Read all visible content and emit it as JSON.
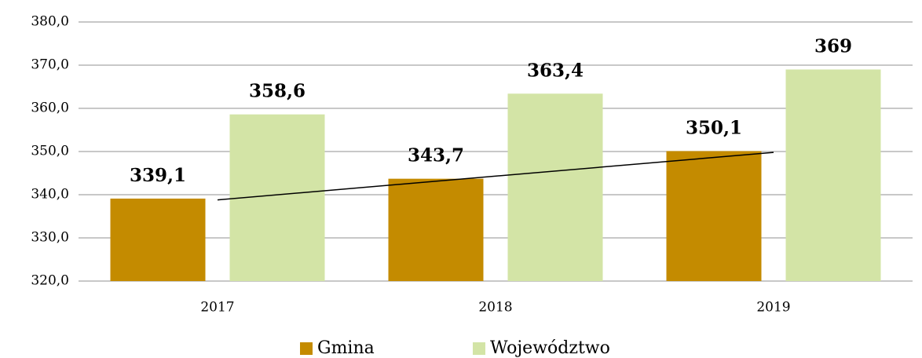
{
  "chart_data": {
    "type": "bar",
    "categories": [
      "2017",
      "2018",
      "2019"
    ],
    "series": [
      {
        "name": "Gmina",
        "color": "#c48b00",
        "values": [
          339.1,
          343.7,
          350.1
        ],
        "value_labels": [
          "339,1",
          "343,7",
          "350,1"
        ],
        "trendline": "linear"
      },
      {
        "name": "Województwo",
        "color": "#d3e4a6",
        "values": [
          358.6,
          363.4,
          369
        ],
        "value_labels": [
          "358,6",
          "363,4",
          "369"
        ]
      }
    ],
    "ylim": [
      320,
      380
    ],
    "yticks": [
      {
        "value": 320,
        "label": "320,0"
      },
      {
        "value": 330,
        "label": "330,0"
      },
      {
        "value": 340,
        "label": "340,0"
      },
      {
        "value": 350,
        "label": "350,0"
      },
      {
        "value": 360,
        "label": "360,0"
      },
      {
        "value": 370,
        "label": "370,0"
      },
      {
        "value": 380,
        "label": "380,0"
      }
    ],
    "grid": true,
    "legend": "bottom"
  }
}
